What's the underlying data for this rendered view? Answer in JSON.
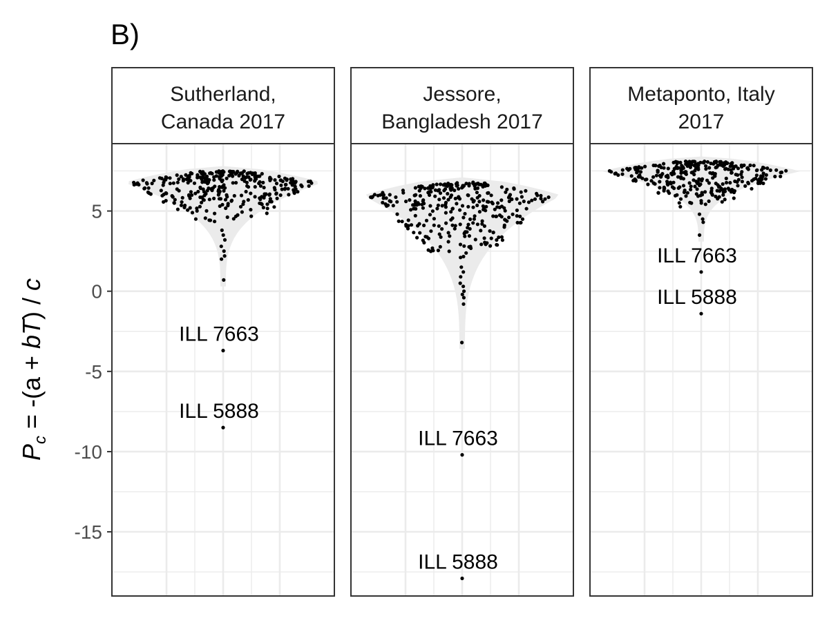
{
  "panel_tag": "B)",
  "chart_data": {
    "type": "scatter",
    "subtype": "violin-beeswarm",
    "tag": "B)",
    "title": "",
    "xlabel": "",
    "ylabel": "P_c = -(a + bT) / c",
    "ylabel_parts": {
      "P": "P",
      "sub": "c",
      "rest1": " = -(a + ",
      "bT": "bT",
      "rest2": ") / ",
      "c": "c"
    },
    "ylim": [
      -19,
      9.2
    ],
    "yticks": [
      -15,
      -10,
      -5,
      0,
      5
    ],
    "yticklabels": [
      "-15",
      "-10",
      "-5",
      "0",
      "5"
    ],
    "grid": true,
    "legend": "none",
    "colors": {
      "points": "#000000",
      "violin": "#ebebeb",
      "grid": "#ebebeb",
      "border": "#333333",
      "tick_text": "#4d4d4d"
    },
    "panels": [
      {
        "title_lines": [
          "Sutherland,",
          "Canada 2017"
        ],
        "main_cluster": {
          "min": 4.0,
          "max": 7.5,
          "center": 6.8
        },
        "tail": [
          3.8,
          3.5,
          3.2,
          2.8,
          2.5,
          2.2,
          2.0,
          0.7
        ],
        "outliers": [
          {
            "label": "ILL 7663",
            "value": -3.7
          },
          {
            "label": "ILL 5888",
            "value": -8.5
          }
        ]
      },
      {
        "title_lines": [
          "Jessore,",
          "Bangladesh 2017"
        ],
        "main_cluster": {
          "min": 1.8,
          "max": 6.8,
          "center": 6.0
        },
        "tail": [
          1.5,
          1.2,
          0.9,
          0.5,
          0.3,
          0.0,
          -0.2,
          -0.4,
          -0.8,
          -3.2
        ],
        "outliers": [
          {
            "label": "ILL 7663",
            "value": -10.2
          },
          {
            "label": "ILL 5888",
            "value": -17.9
          }
        ]
      },
      {
        "title_lines": [
          "Metaponto, Italy",
          "2017"
        ],
        "main_cluster": {
          "min": 5.0,
          "max": 8.1,
          "center": 7.5
        },
        "tail": [
          4.8,
          4.5,
          4.3,
          3.5
        ],
        "outliers": [
          {
            "label": "ILL 7663",
            "value": 1.2
          },
          {
            "label": "ILL 5888",
            "value": -1.4
          }
        ]
      }
    ]
  }
}
